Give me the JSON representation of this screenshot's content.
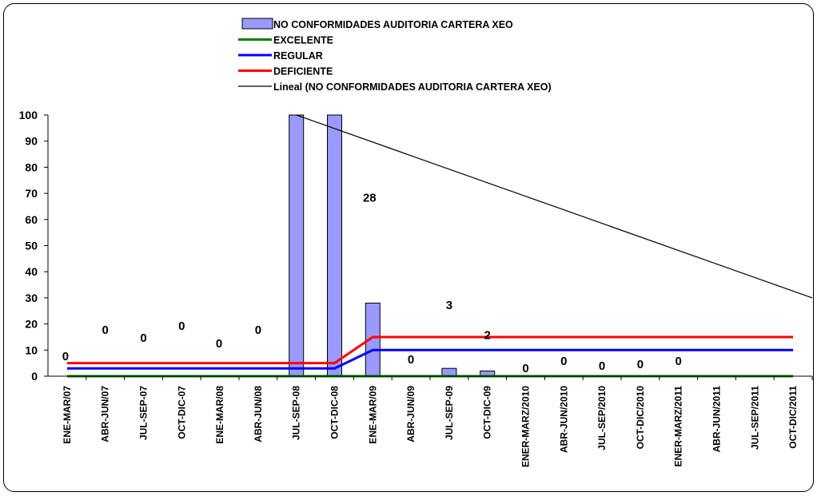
{
  "chart_data": {
    "type": "bar",
    "categories": [
      "ENE-MAR/07",
      "ABR-JUN/07",
      "JUL-SEP-07",
      "OCT-DIC-07",
      "ENE-MAR/08",
      "ABR-JUN/08",
      "JUL-SEP-08",
      "OCT-DIC-08",
      "ENE-MAR/09",
      "ABR-JUN/09",
      "JUL-SEP-09",
      "OCT-DIC-09",
      "ENER-MARZ/2010",
      "ABR-JUN/2010",
      "JUL-SEP/2010",
      "OCT-DIC/2010",
      "ENER-MARZ/2011",
      "ABR-JUN/2011",
      "JUL-SEP/2011",
      "OCT-DIC/2011"
    ],
    "series": [
      {
        "name": "NO CONFORMIDADES AUDITORIA  CARTERA XEO",
        "kind": "bar",
        "color": "#9999ff",
        "values": [
          0,
          0,
          0,
          0,
          0,
          0,
          100,
          100,
          28,
          0,
          3,
          2,
          0,
          0,
          0,
          0,
          0,
          null,
          null,
          null
        ],
        "labels": [
          "0",
          "0",
          "0",
          "0",
          "0",
          "0",
          "",
          "",
          "28",
          "0",
          "3",
          "2",
          "0",
          "0",
          "0",
          "0",
          "0",
          "",
          "",
          ""
        ]
      },
      {
        "name": "EXCELENTE",
        "kind": "line",
        "color": "#008000",
        "values": [
          0,
          0,
          0,
          0,
          0,
          0,
          0,
          0,
          0,
          0,
          0,
          0,
          0,
          0,
          0,
          0,
          0,
          0,
          0,
          0
        ]
      },
      {
        "name": "REGULAR",
        "kind": "line",
        "color": "#0000ff",
        "values": [
          3,
          3,
          3,
          3,
          3,
          3,
          3,
          3,
          10,
          10,
          10,
          10,
          10,
          10,
          10,
          10,
          10,
          10,
          10,
          10
        ]
      },
      {
        "name": "DEFICIENTE",
        "kind": "line",
        "color": "#ff0000",
        "values": [
          5,
          5,
          5,
          5,
          5,
          5,
          5,
          5,
          15,
          15,
          15,
          15,
          15,
          15,
          15,
          15,
          15,
          15,
          15,
          15
        ]
      },
      {
        "name": "Lineal (NO CONFORMIDADES AUDITORIA  CARTERA XEO)",
        "kind": "trendline",
        "color": "#000000",
        "start_value": 100,
        "end_value": 30
      }
    ],
    "y_ticks": [
      "0",
      "10",
      "20",
      "30",
      "40",
      "50",
      "60",
      "70",
      "80",
      "90",
      "100"
    ],
    "ylim": [
      0,
      100
    ],
    "legend_position": "top-center",
    "grid": false
  }
}
